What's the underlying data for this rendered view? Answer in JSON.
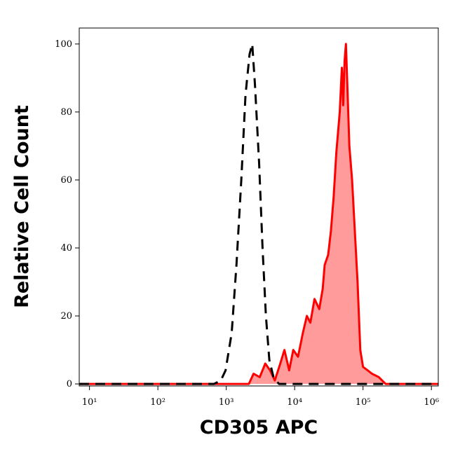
{
  "chart_data": {
    "type": "histogram-line",
    "x_label": "CD305 APC",
    "y_label": "Relative Cell Count",
    "xscale": "log",
    "xlim": [
      7.08,
      1260000
    ],
    "ylim": [
      -0.6,
      104.7
    ],
    "xticks": [
      {
        "value": 10,
        "label": "10¹"
      },
      {
        "value": 100,
        "label": "10²"
      },
      {
        "value": 1000,
        "label": "10³"
      },
      {
        "value": 10000,
        "label": "10⁴"
      },
      {
        "value": 100000,
        "label": "10⁵"
      },
      {
        "value": 1000000,
        "label": "10⁶"
      }
    ],
    "yticks": [
      0,
      20,
      40,
      60,
      80,
      100
    ],
    "series": [
      {
        "color": "#ff0000",
        "fill": "#ff9b9b",
        "dashed": false,
        "x": [
          7.08,
          2140,
          2510,
          3090,
          3720,
          4370,
          5130,
          6170,
          7080,
          8320,
          9550,
          11200,
          13200,
          15100,
          17000,
          19500,
          22900,
          25700,
          27500,
          30900,
          33900,
          37200,
          40700,
          45700,
          49000,
          51300,
          53700,
          56200,
          58900,
          63100,
          69200,
          75900,
          83200,
          91200,
          100000,
          117000,
          135000,
          170000,
          214000,
          1260000
        ],
        "values": [
          0,
          0,
          3,
          2,
          6,
          4,
          1,
          6,
          10,
          4,
          10,
          8,
          15,
          20,
          18,
          25,
          22,
          28,
          35,
          38,
          45,
          55,
          68,
          80,
          93,
          82,
          95,
          100,
          88,
          70,
          60,
          45,
          30,
          10,
          5,
          4,
          3,
          2,
          0,
          0
        ]
      },
      {
        "color": "#000000",
        "fill": null,
        "dashed": true,
        "x": [
          7.08,
          661,
          832,
          977,
          1200,
          1410,
          1660,
          1910,
          2190,
          2400,
          2630,
          3020,
          3390,
          3800,
          4270,
          4900,
          5890,
          1260000
        ],
        "values": [
          0,
          0,
          1,
          4,
          15,
          35,
          60,
          85,
          97,
          100,
          88,
          65,
          40,
          20,
          7,
          2,
          0,
          0
        ]
      }
    ]
  }
}
